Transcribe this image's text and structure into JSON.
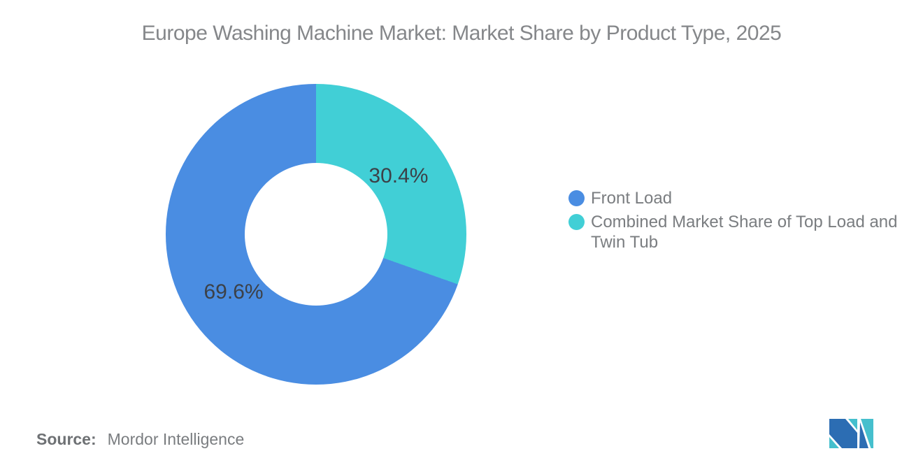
{
  "chart_data": {
    "type": "pie",
    "subtype": "donut",
    "title": "Europe Washing Machine Market: Market Share by Product Type, 2025",
    "first_slice_direction": "counterclockwise-from-top",
    "hole_ratio": 0.48,
    "legend_position": "right",
    "slices": [
      {
        "name": "Front Load",
        "label_lines": [
          "Front Load"
        ],
        "value": 69.6,
        "display_value": "69.6%",
        "color": "#4A8DE2"
      },
      {
        "name": "Combined Market Share of Top Load and Twin Tub",
        "label_lines": [
          "Combined Market Share of Top Load and",
          "Twin Tub"
        ],
        "value": 30.4,
        "display_value": "30.4%",
        "color": "#41CFD6"
      }
    ],
    "data_label_color": "#3C4148",
    "title_color": "#85878A",
    "legend_text_color": "#7A7D80"
  },
  "source": {
    "prefix": "Source:",
    "text": "Mordor Intelligence"
  },
  "logo": {
    "name": "mordor-intelligence-logo",
    "blue": "#2C6DB3",
    "teal": "#45BFCD"
  }
}
